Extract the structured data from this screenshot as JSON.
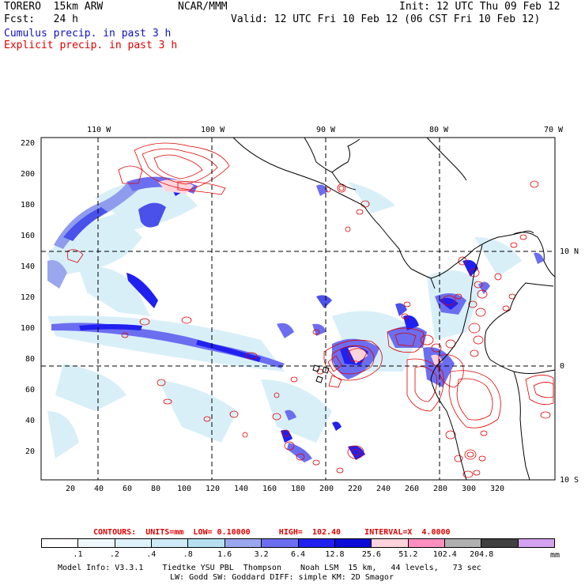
{
  "header": {
    "model": "TORERO  15km ARW",
    "org": "NCAR/MMM",
    "init": "Init: 12 UTC Thu 09 Feb 12",
    "fcst": "Fcst:   24 h",
    "valid": "Valid: 12 UTC Fri 10 Feb 12 (06 CST Fri 10 Feb 12)",
    "cumulus_label": "Cumulus precip. in past 3 h",
    "explicit_label": "Explicit precip. in past 3 h"
  },
  "colors": {
    "cumulus": "#1010c0",
    "explicit": "#e00000"
  },
  "axes": {
    "longitude_labels": [
      "110 W",
      "100 W",
      "90 W",
      "80 W",
      "70 W"
    ],
    "latitude_labels": [
      "10 N",
      "0",
      "10 S"
    ],
    "y_ticks": [
      "220",
      "200",
      "180",
      "160",
      "140",
      "120",
      "100",
      "80",
      "60",
      "40",
      "20"
    ],
    "x_ticks": [
      "20",
      "40",
      "60",
      "80",
      "100",
      "120",
      "140",
      "160",
      "180",
      "200",
      "220",
      "240",
      "260",
      "280",
      "300",
      "320"
    ]
  },
  "contours": {
    "label": "CONTOURS:  UNITS=mm  LOW= 0.10000      HIGH=  102.40     INTERVAL=X  4.0000"
  },
  "colorbar": {
    "labels": [
      ".1",
      ".2",
      ".4",
      ".8",
      "1.6",
      "3.2",
      "6.4",
      "12.8",
      "25.6",
      "51.2",
      "102.4",
      "204.8"
    ],
    "units": "mm",
    "colors": [
      "#ffffff",
      "#eef8fc",
      "#dff2fa",
      "#cdeaf6",
      "#b7dff2",
      "#9aa6ee",
      "#6c6ef0",
      "#2020f0",
      "#0c0cd8",
      "#ffd3dc",
      "#ff8fbe",
      "#b0b0b0",
      "#404040",
      "#d4a0f0"
    ]
  },
  "footer": {
    "line1": "Model Info: V3.3.1    Tiedtke YSU PBL  Thompson    Noah LSM  15 km,   44 levels,   73 sec",
    "line2": "LW: Godd SW: Goddard DIFF: simple KM: 2D Smagor"
  }
}
